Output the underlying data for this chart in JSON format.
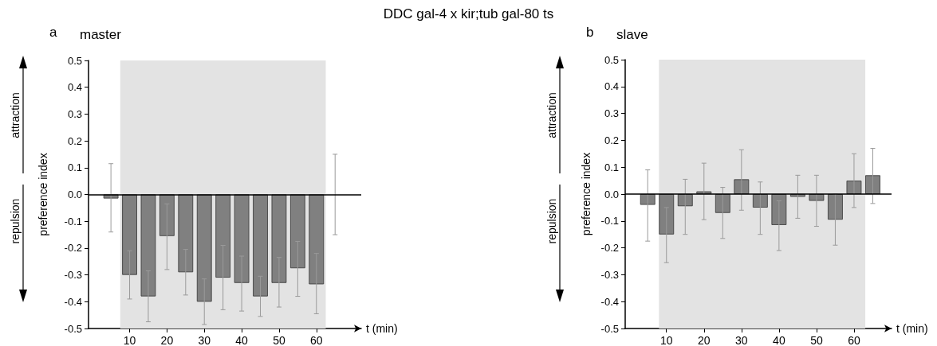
{
  "chart_data": [
    {
      "type": "bar",
      "title": "master",
      "xlabel": "t (min)",
      "ylabel": "preference index",
      "annotations": [
        "a",
        "attraction",
        "repulsion",
        "DDC gal-4 x kir;tub gal-80 ts"
      ],
      "x": [
        5,
        10,
        15,
        20,
        25,
        30,
        35,
        40,
        45,
        50,
        55,
        60,
        65
      ],
      "series": [
        {
          "color": "#808080",
          "values": [
            -0.015,
            -0.3,
            -0.38,
            -0.155,
            -0.29,
            -0.4,
            -0.31,
            -0.33,
            -0.38,
            -0.33,
            -0.275,
            -0.335,
            0
          ],
          "errors": [
            [
              -0.14,
              0.115
            ],
            [
              -0.39,
              -0.21
            ],
            [
              -0.475,
              -0.285
            ],
            [
              -0.28,
              -0.035
            ],
            [
              -0.375,
              -0.205
            ],
            [
              -0.485,
              -0.315
            ],
            [
              -0.43,
              -0.19
            ],
            [
              -0.435,
              -0.23
            ],
            [
              -0.455,
              -0.305
            ],
            [
              -0.42,
              -0.235
            ],
            [
              -0.38,
              -0.175
            ],
            [
              -0.445,
              -0.22
            ],
            [
              -0.15,
              0.15
            ]
          ]
        }
      ],
      "xlim": [
        -1,
        72
      ],
      "xticks": [
        10,
        20,
        30,
        40,
        50,
        60
      ],
      "ylim": [
        -0.5,
        0.5
      ],
      "yticks": [
        -0.5,
        -0.4,
        -0.3,
        -0.2,
        -0.1,
        {
          "value": 0,
          "label": "0.0"
        },
        0.1,
        0.2,
        0.3,
        0.4,
        0.5
      ],
      "bands": [
        {
          "axis": "x",
          "from": 7.5,
          "to": 62.5,
          "color": "#e3e3e3"
        }
      ],
      "ref_lines": [
        {
          "axis": "y",
          "value": 0,
          "color": "#000000"
        }
      ],
      "grid": false
    },
    {
      "type": "bar",
      "title": "slave",
      "xlabel": "t (min)",
      "ylabel": "preference index",
      "annotations": [
        "b",
        "attraction",
        "repulsion"
      ],
      "x": [
        5,
        10,
        15,
        20,
        25,
        30,
        35,
        40,
        45,
        50,
        55,
        60,
        65
      ],
      "series": [
        {
          "color": "#808080",
          "values": [
            -0.04,
            -0.15,
            -0.045,
            0.01,
            -0.07,
            0.055,
            -0.05,
            -0.115,
            -0.01,
            -0.025,
            -0.095,
            0.05,
            0.07
          ],
          "errors": [
            [
              -0.175,
              0.09
            ],
            [
              -0.255,
              -0.05
            ],
            [
              -0.15,
              0.055
            ],
            [
              -0.095,
              0.115
            ],
            [
              -0.165,
              0.025
            ],
            [
              -0.06,
              0.165
            ],
            [
              -0.15,
              0.045
            ],
            [
              -0.21,
              -0.025
            ],
            [
              -0.09,
              0.07
            ],
            [
              -0.12,
              0.07
            ],
            [
              -0.19,
              0
            ],
            [
              -0.05,
              0.15
            ],
            [
              -0.035,
              0.17
            ]
          ]
        }
      ],
      "xlim": [
        -1,
        70
      ],
      "xticks": [
        10,
        20,
        30,
        40,
        50,
        60
      ],
      "ylim": [
        -0.5,
        0.5
      ],
      "yticks": [
        -0.5,
        -0.4,
        -0.3,
        -0.2,
        -0.1,
        {
          "value": 0,
          "label": "0.0"
        },
        0.1,
        0.2,
        0.3,
        0.4,
        0.5
      ],
      "bands": [
        {
          "axis": "x",
          "from": 8,
          "to": 63,
          "color": "#e3e3e3"
        }
      ],
      "ref_lines": [
        {
          "axis": "y",
          "value": 0,
          "color": "#000000"
        }
      ],
      "grid": false
    }
  ]
}
